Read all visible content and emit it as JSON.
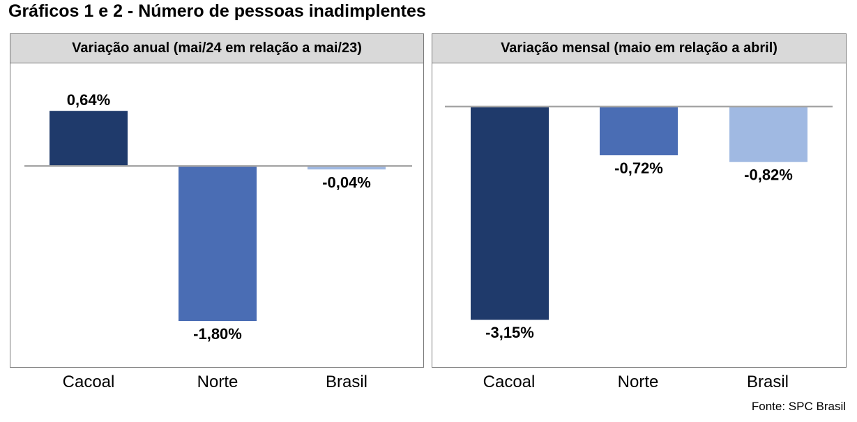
{
  "title": "Gráficos 1 e 2 - Número de pessoas inadimplentes",
  "source": "Fonte: SPC Brasil",
  "colors": {
    "Cacoal": "#1f3a6b",
    "Norte": "#4a6db4",
    "Brasil": "#a0b9e2",
    "header_bg": "#d9d9d9",
    "zero_line": "#a6a6a6"
  },
  "chart_data": [
    {
      "type": "bar",
      "title": "Variação anual (mai/24 em relação a mai/23)",
      "categories": [
        "Cacoal",
        "Norte",
        "Brasil"
      ],
      "values": [
        0.64,
        -1.8,
        -0.04
      ],
      "labels": [
        "0,64%",
        "-1,80%",
        "-0,04%"
      ],
      "ylim": [
        -1.84,
        0.69
      ],
      "unit": "%",
      "grid": false,
      "legend": "none"
    },
    {
      "type": "bar",
      "title": "Variação mensal (maio em relação a abril)",
      "categories": [
        "Cacoal",
        "Norte",
        "Brasil"
      ],
      "values": [
        -3.15,
        -0.72,
        -0.82
      ],
      "labels": [
        "-3,15%",
        "-0,72%",
        "-0,82%"
      ],
      "ylim": [
        -3.22,
        0.0
      ],
      "unit": "%",
      "grid": false,
      "legend": "none"
    }
  ]
}
